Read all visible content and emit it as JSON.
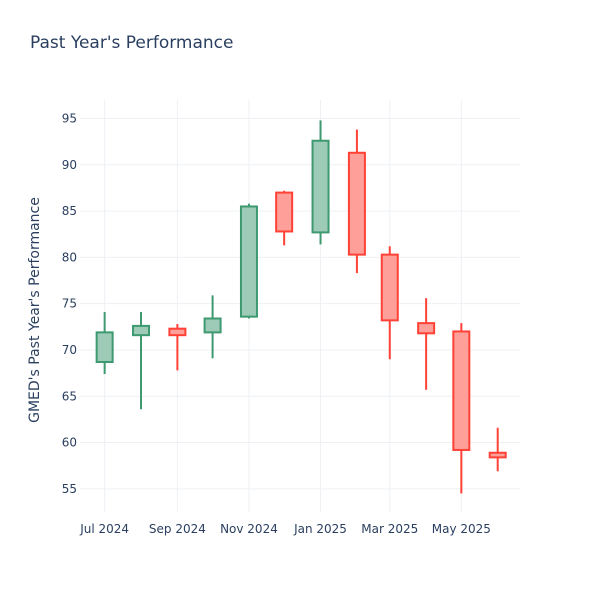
{
  "chart_data": {
    "type": "candlestick",
    "title": "Past Year's Performance",
    "xlabel": "",
    "ylabel": "GMED's Past Year's Performance",
    "ylim": [
      52.5,
      97
    ],
    "yticks": [
      55,
      60,
      65,
      70,
      75,
      80,
      85,
      90,
      95
    ],
    "xticks": [
      {
        "date": "2024-07-01",
        "label": "Jul 2024"
      },
      {
        "date": "2024-09-01",
        "label": "Sep 2024"
      },
      {
        "date": "2024-11-01",
        "label": "Nov 2024"
      },
      {
        "date": "2025-01-01",
        "label": "Jan 2025"
      },
      {
        "date": "2025-03-01",
        "label": "Mar 2025"
      },
      {
        "date": "2025-05-01",
        "label": "May 2025"
      }
    ],
    "xrange": [
      "2024-06-10",
      "2025-06-20"
    ],
    "grid": true,
    "colors": {
      "increasing": "#3d9970",
      "increasing_fill": "#9ecbb7",
      "decreasing": "#ff4136",
      "decreasing_fill": "#ff9f9a"
    },
    "candles": [
      {
        "date": "2024-07-01",
        "open": 68.7,
        "high": 74.1,
        "low": 67.4,
        "close": 71.9
      },
      {
        "date": "2024-08-01",
        "open": 71.6,
        "high": 74.1,
        "low": 63.6,
        "close": 72.6
      },
      {
        "date": "2024-09-01",
        "open": 72.3,
        "high": 72.8,
        "low": 67.8,
        "close": 71.6
      },
      {
        "date": "2024-10-01",
        "open": 71.9,
        "high": 75.9,
        "low": 69.1,
        "close": 73.4
      },
      {
        "date": "2024-11-01",
        "open": 73.6,
        "high": 85.8,
        "low": 73.4,
        "close": 85.5
      },
      {
        "date": "2024-12-01",
        "open": 87.0,
        "high": 87.2,
        "low": 81.3,
        "close": 82.8
      },
      {
        "date": "2025-01-01",
        "open": 82.7,
        "high": 94.8,
        "low": 81.4,
        "close": 92.6
      },
      {
        "date": "2025-02-01",
        "open": 91.3,
        "high": 93.8,
        "low": 78.3,
        "close": 80.3
      },
      {
        "date": "2025-03-01",
        "open": 80.3,
        "high": 81.2,
        "low": 69.0,
        "close": 73.2
      },
      {
        "date": "2025-04-01",
        "open": 72.9,
        "high": 75.6,
        "low": 65.7,
        "close": 71.8
      },
      {
        "date": "2025-05-01",
        "open": 72.0,
        "high": 72.9,
        "low": 54.5,
        "close": 59.2
      },
      {
        "date": "2025-06-01",
        "open": 58.9,
        "high": 61.6,
        "low": 56.9,
        "close": 58.4
      }
    ]
  }
}
